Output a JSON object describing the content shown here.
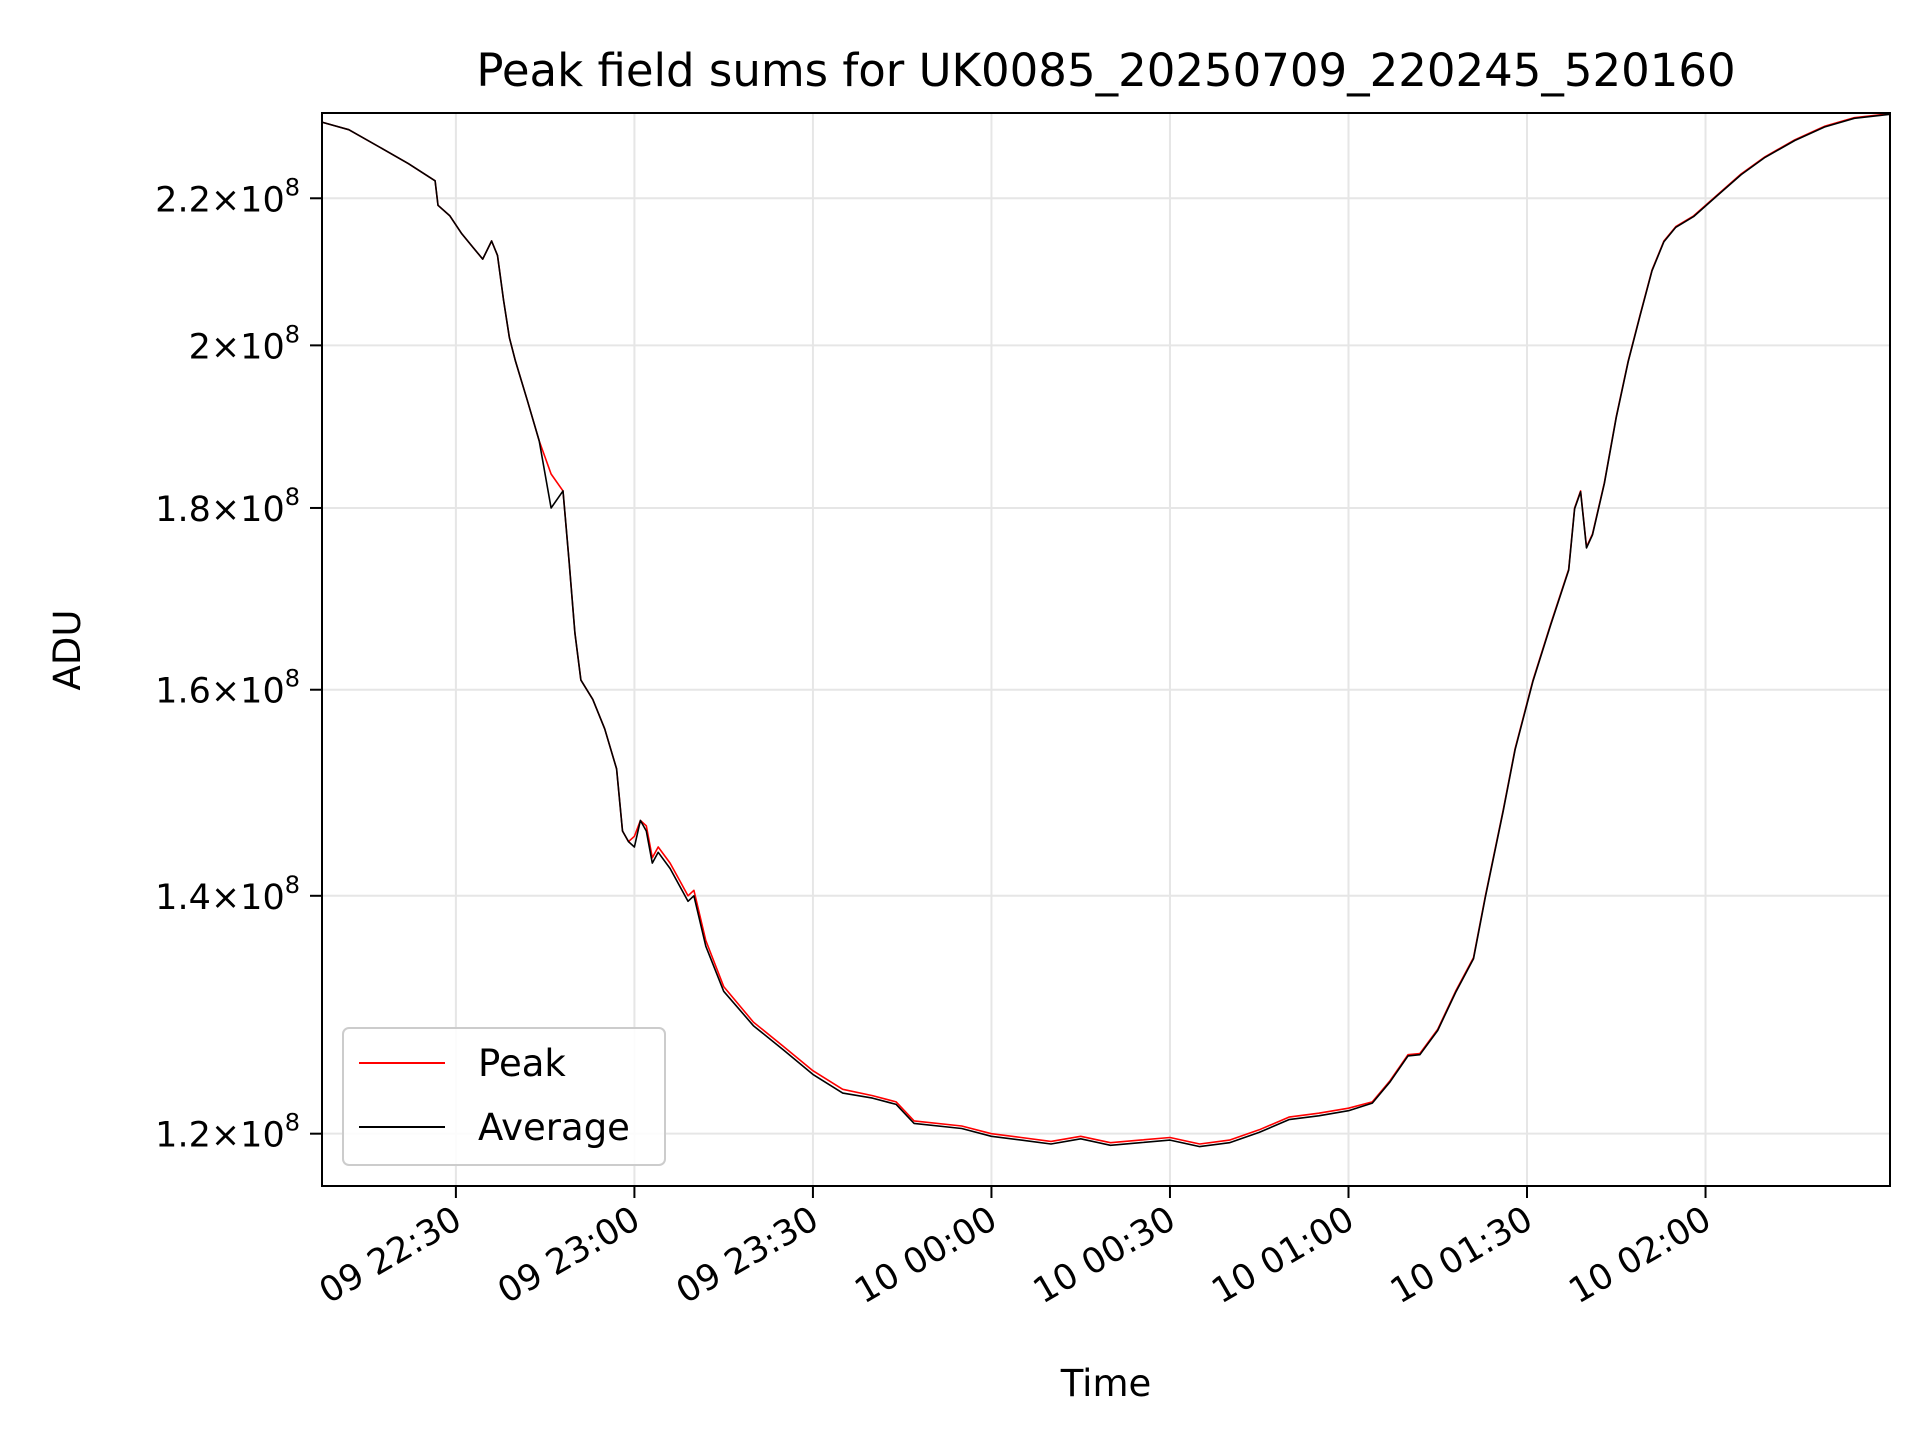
{
  "chart_data": {
    "type": "line",
    "title": "Peak field sums for UK0085_20250709_220245_520160",
    "xlabel": "Time",
    "ylabel": "ADU",
    "y_scale": "log",
    "grid": true,
    "legend_position": "lower-left",
    "xlim": [
      "2025-07-09 22:07:30",
      "2025-07-10 02:31:00"
    ],
    "ylim": [
      116000000,
      232500000
    ],
    "x_ticks": [
      {
        "value": "2025-07-09 22:30",
        "label": "09 22:30"
      },
      {
        "value": "2025-07-09 23:00",
        "label": "09 23:00"
      },
      {
        "value": "2025-07-09 23:30",
        "label": "09 23:30"
      },
      {
        "value": "2025-07-10 00:00",
        "label": "10 00:00"
      },
      {
        "value": "2025-07-10 00:30",
        "label": "10 00:30"
      },
      {
        "value": "2025-07-10 01:00",
        "label": "10 01:00"
      },
      {
        "value": "2025-07-10 01:30",
        "label": "10 01:30"
      },
      {
        "value": "2025-07-10 02:00",
        "label": "10 02:00"
      }
    ],
    "y_ticks": [
      {
        "value": 120000000,
        "mantissa": "1.2",
        "base": "10",
        "exp": "8"
      },
      {
        "value": 140000000,
        "mantissa": "1.4",
        "base": "10",
        "exp": "8"
      },
      {
        "value": 160000000,
        "mantissa": "1.6",
        "base": "10",
        "exp": "8"
      },
      {
        "value": 180000000,
        "mantissa": "1.8",
        "base": "10",
        "exp": "8"
      },
      {
        "value": 200000000,
        "mantissa": "2",
        "base": "10",
        "exp": "8"
      },
      {
        "value": 220000000,
        "mantissa": "2.2",
        "base": "10",
        "exp": "8"
      }
    ],
    "series": [
      {
        "name": "Peak",
        "color": "#ff0000",
        "x": [
          "2025-07-09 22:03:00",
          "2025-07-09 22:06:00",
          "2025-07-09 22:12:00",
          "2025-07-09 22:18:00",
          "2025-07-09 22:22:00",
          "2025-07-09 22:26:30",
          "2025-07-09 22:27:00",
          "2025-07-09 22:29:00",
          "2025-07-09 22:31:00",
          "2025-07-09 22:33:00",
          "2025-07-09 22:34:30",
          "2025-07-09 22:36:00",
          "2025-07-09 22:37:00",
          "2025-07-09 22:38:00",
          "2025-07-09 22:39:00",
          "2025-07-09 22:40:00",
          "2025-07-09 22:42:00",
          "2025-07-09 22:44:00",
          "2025-07-09 22:46:00",
          "2025-07-09 22:48:00",
          "2025-07-09 22:49:00",
          "2025-07-09 22:50:00",
          "2025-07-09 22:51:00",
          "2025-07-09 22:53:00",
          "2025-07-09 22:55:00",
          "2025-07-09 22:56:00",
          "2025-07-09 22:57:00",
          "2025-07-09 22:58:00",
          "2025-07-09 22:59:00",
          "2025-07-09 23:00:00",
          "2025-07-09 23:01:00",
          "2025-07-09 23:02:00",
          "2025-07-09 23:03:00",
          "2025-07-09 23:04:00",
          "2025-07-09 23:06:00",
          "2025-07-09 23:08:00",
          "2025-07-09 23:09:00",
          "2025-07-09 23:10:00",
          "2025-07-09 23:12:00",
          "2025-07-09 23:15:00",
          "2025-07-09 23:20:00",
          "2025-07-09 23:25:00",
          "2025-07-09 23:30:00",
          "2025-07-09 23:35:00",
          "2025-07-09 23:40:00",
          "2025-07-09 23:44:00",
          "2025-07-09 23:47:00",
          "2025-07-09 23:55:00",
          "2025-07-10 00:00:00",
          "2025-07-10 00:05:00",
          "2025-07-10 00:10:00",
          "2025-07-10 00:15:00",
          "2025-07-10 00:20:00",
          "2025-07-10 00:25:00",
          "2025-07-10 00:30:00",
          "2025-07-10 00:35:00",
          "2025-07-10 00:40:00",
          "2025-07-10 00:45:00",
          "2025-07-10 00:50:00",
          "2025-07-10 00:55:00",
          "2025-07-10 01:00:00",
          "2025-07-10 01:04:00",
          "2025-07-10 01:07:00",
          "2025-07-10 01:10:00",
          "2025-07-10 01:12:00",
          "2025-07-10 01:15:00",
          "2025-07-10 01:18:00",
          "2025-07-10 01:21:00",
          "2025-07-10 01:23:00",
          "2025-07-10 01:26:00",
          "2025-07-10 01:28:00",
          "2025-07-10 01:31:00",
          "2025-07-10 01:34:00",
          "2025-07-10 01:37:00",
          "2025-07-10 01:38:00",
          "2025-07-10 01:39:00",
          "2025-07-10 01:40:00",
          "2025-07-10 01:41:00",
          "2025-07-10 01:43:00",
          "2025-07-10 01:45:00",
          "2025-07-10 01:47:00",
          "2025-07-10 01:49:00",
          "2025-07-10 01:51:00",
          "2025-07-10 01:53:00",
          "2025-07-10 01:55:00",
          "2025-07-10 01:58:00",
          "2025-07-10 02:02:00",
          "2025-07-10 02:06:00",
          "2025-07-10 02:10:00",
          "2025-07-10 02:15:00",
          "2025-07-10 02:20:00",
          "2025-07-10 02:25:00",
          "2025-07-10 02:31:00"
        ],
        "y": [
          232000000,
          231500000,
          230000000,
          227000000,
          225000000,
          222500000,
          219000000,
          217500000,
          215000000,
          213000000,
          211500000,
          214000000,
          212000000,
          206000000,
          201000000,
          198000000,
          193000000,
          188000000,
          184000000,
          182000000,
          174000000,
          166000000,
          161000000,
          159000000,
          156000000,
          154000000,
          152000000,
          146000000,
          145000000,
          145500000,
          147000000,
          146500000,
          143500000,
          144500000,
          143000000,
          141000000,
          140000000,
          140500000,
          136000000,
          132000000,
          129000000,
          127000000,
          125000000,
          123500000,
          123000000,
          122500000,
          121000000,
          120600000,
          120000000,
          119700000,
          119400000,
          119800000,
          119300000,
          119500000,
          119700000,
          119200000,
          119500000,
          120300000,
          121300000,
          121600000,
          122000000,
          122500000,
          124200000,
          126300000,
          126400000,
          128400000,
          131600000,
          134500000,
          140000000,
          148000000,
          154000000,
          161000000,
          167000000,
          173000000,
          180000000,
          182000000,
          175500000,
          177000000,
          183000000,
          191000000,
          198000000,
          204000000,
          210000000,
          214000000,
          216000000,
          217500000,
          220500000,
          223500000,
          226000000,
          228500000,
          230500000,
          231800000,
          232400000
        ]
      },
      {
        "name": "Average",
        "color": "#000000",
        "x": [
          "2025-07-09 22:03:00",
          "2025-07-09 22:06:00",
          "2025-07-09 22:12:00",
          "2025-07-09 22:18:00",
          "2025-07-09 22:22:00",
          "2025-07-09 22:26:30",
          "2025-07-09 22:27:00",
          "2025-07-09 22:29:00",
          "2025-07-09 22:31:00",
          "2025-07-09 22:33:00",
          "2025-07-09 22:34:30",
          "2025-07-09 22:36:00",
          "2025-07-09 22:37:00",
          "2025-07-09 22:38:00",
          "2025-07-09 22:39:00",
          "2025-07-09 22:40:00",
          "2025-07-09 22:42:00",
          "2025-07-09 22:44:00",
          "2025-07-09 22:46:00",
          "2025-07-09 22:48:00",
          "2025-07-09 22:49:00",
          "2025-07-09 22:50:00",
          "2025-07-09 22:51:00",
          "2025-07-09 22:53:00",
          "2025-07-09 22:55:00",
          "2025-07-09 22:56:00",
          "2025-07-09 22:57:00",
          "2025-07-09 22:58:00",
          "2025-07-09 22:59:00",
          "2025-07-09 23:00:00",
          "2025-07-09 23:01:00",
          "2025-07-09 23:02:00",
          "2025-07-09 23:03:00",
          "2025-07-09 23:04:00",
          "2025-07-09 23:06:00",
          "2025-07-09 23:08:00",
          "2025-07-09 23:09:00",
          "2025-07-09 23:10:00",
          "2025-07-09 23:12:00",
          "2025-07-09 23:15:00",
          "2025-07-09 23:20:00",
          "2025-07-09 23:25:00",
          "2025-07-09 23:30:00",
          "2025-07-09 23:35:00",
          "2025-07-09 23:40:00",
          "2025-07-09 23:44:00",
          "2025-07-09 23:47:00",
          "2025-07-09 23:55:00",
          "2025-07-10 00:00:00",
          "2025-07-10 00:05:00",
          "2025-07-10 00:10:00",
          "2025-07-10 00:15:00",
          "2025-07-10 00:20:00",
          "2025-07-10 00:25:00",
          "2025-07-10 00:30:00",
          "2025-07-10 00:35:00",
          "2025-07-10 00:40:00",
          "2025-07-10 00:45:00",
          "2025-07-10 00:50:00",
          "2025-07-10 00:55:00",
          "2025-07-10 01:00:00",
          "2025-07-10 01:04:00",
          "2025-07-10 01:07:00",
          "2025-07-10 01:10:00",
          "2025-07-10 01:12:00",
          "2025-07-10 01:15:00",
          "2025-07-10 01:18:00",
          "2025-07-10 01:21:00",
          "2025-07-10 01:23:00",
          "2025-07-10 01:26:00",
          "2025-07-10 01:28:00",
          "2025-07-10 01:31:00",
          "2025-07-10 01:34:00",
          "2025-07-10 01:37:00",
          "2025-07-10 01:38:00",
          "2025-07-10 01:39:00",
          "2025-07-10 01:40:00",
          "2025-07-10 01:41:00",
          "2025-07-10 01:43:00",
          "2025-07-10 01:45:00",
          "2025-07-10 01:47:00",
          "2025-07-10 01:49:00",
          "2025-07-10 01:51:00",
          "2025-07-10 01:53:00",
          "2025-07-10 01:55:00",
          "2025-07-10 01:58:00",
          "2025-07-10 02:02:00",
          "2025-07-10 02:06:00",
          "2025-07-10 02:10:00",
          "2025-07-10 02:15:00",
          "2025-07-10 02:20:00",
          "2025-07-10 02:25:00",
          "2025-07-10 02:31:00"
        ],
        "y": [
          232000000,
          231500000,
          230000000,
          227000000,
          225000000,
          222500000,
          219000000,
          217500000,
          215000000,
          213000000,
          211500000,
          214000000,
          212000000,
          206000000,
          201000000,
          198000000,
          193000000,
          188000000,
          180000000,
          182000000,
          174000000,
          166000000,
          161000000,
          159000000,
          156000000,
          154000000,
          152000000,
          146000000,
          145000000,
          144500000,
          147000000,
          146000000,
          143000000,
          144000000,
          142500000,
          140500000,
          139500000,
          140000000,
          135500000,
          131600000,
          128700000,
          126700000,
          124700000,
          123200000,
          122800000,
          122300000,
          120800000,
          120400000,
          119800000,
          119500000,
          119200000,
          119600000,
          119100000,
          119300000,
          119500000,
          119000000,
          119300000,
          120100000,
          121100000,
          121400000,
          121800000,
          122400000,
          124100000,
          126200000,
          126300000,
          128300000,
          131500000,
          134400000,
          139900000,
          147900000,
          153900000,
          160900000,
          166900000,
          172900000,
          179900000,
          181900000,
          175400000,
          176900000,
          182900000,
          190900000,
          197900000,
          203900000,
          209900000,
          213900000,
          215900000,
          217400000,
          220400000,
          223400000,
          225900000,
          228400000,
          230400000,
          231700000,
          232300000
        ]
      }
    ]
  }
}
